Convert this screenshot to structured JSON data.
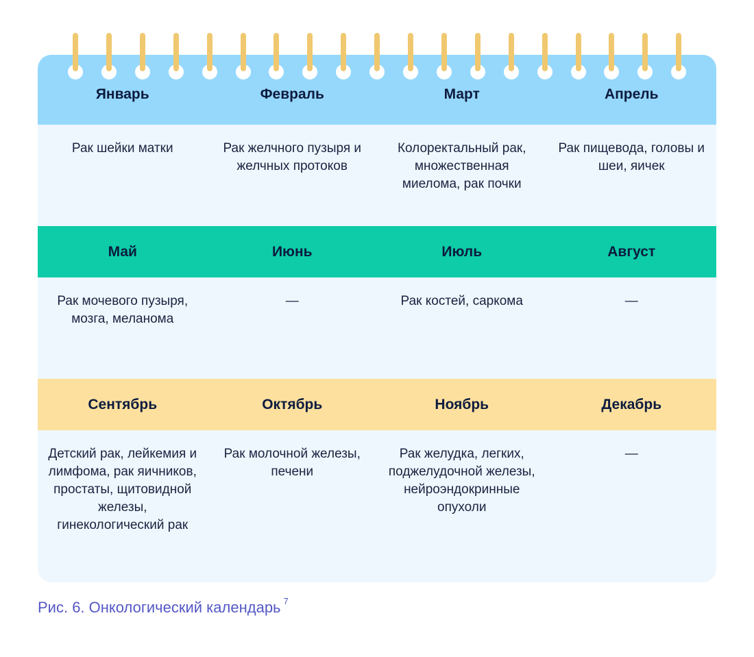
{
  "colors": {
    "row1": "#96d8fc",
    "row2": "#0dcca7",
    "row3": "#fde09e",
    "body": "#eef7fd",
    "ring_bar": "#f0c870",
    "caption": "#5458c4"
  },
  "rows": [
    {
      "months": [
        "Январь",
        "Февраль",
        "Март",
        "Апрель"
      ],
      "cancers": [
        "Рак шейки матки",
        "Рак желчного пузыря и желчных протоков",
        "Колоректальный рак, множественная миелома, рак почки",
        "Рак пищевода, головы и шеи, яичек"
      ]
    },
    {
      "months": [
        "Май",
        "Июнь",
        "Июль",
        "Август"
      ],
      "cancers": [
        "Рак мочевого пузыря, мозга, меланома",
        "—",
        "Рак костей, саркома",
        "—"
      ]
    },
    {
      "months": [
        "Сентябрь",
        "Октябрь",
        "Ноябрь",
        "Декабрь"
      ],
      "cancers": [
        "Детский рак, лейкемия и лимфома, рак яичников, простаты, щитовидной железы, гинекологический рак",
        "Рак молочной железы, печени",
        "Рак желудка, легких, поджелудочной железы, нейроэндокринные опухоли",
        "—"
      ]
    }
  ],
  "caption": {
    "text": "Рис. 6. Онкологический календарь",
    "footnote": "7"
  }
}
